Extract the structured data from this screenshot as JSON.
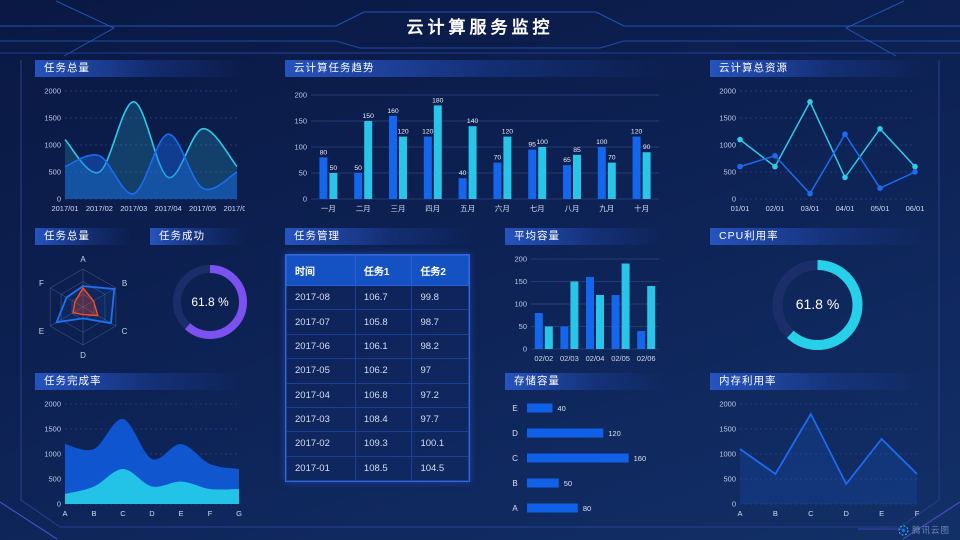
{
  "title": "云计算服务监控",
  "footer": {
    "logo_text": "腾讯云图"
  },
  "colors": {
    "accent_blue": "#1b6cf0",
    "accent_cyan": "#2ecbe6",
    "gauge_purple": "#7b52f0",
    "gauge_cyan": "#25d0e8",
    "radar_orange": "#ff4a1f",
    "panel_header_blue": "#2355c2",
    "table_header_blue": "#1452c4"
  },
  "chart_data": [
    {
      "id": "task_total_trend",
      "type": "area",
      "title": "任务总量",
      "x": [
        "2017/01",
        "2017/02",
        "2017/03",
        "2017/04",
        "2017/05",
        "2017/06"
      ],
      "series": [
        {
          "name": "cyan-series",
          "color": "#2ecbe6",
          "values": [
            1100,
            500,
            1800,
            400,
            1300,
            600
          ]
        },
        {
          "name": "blue-series",
          "color": "#1b6cf0",
          "values": [
            600,
            800,
            100,
            1200,
            200,
            500
          ]
        }
      ],
      "ylim": [
        0,
        2000
      ],
      "yticks": [
        0,
        500,
        1000,
        1500,
        2000
      ]
    },
    {
      "id": "cloud_task_trend",
      "type": "bar",
      "title": "云计算任务趋势",
      "categories": [
        "一月",
        "二月",
        "三月",
        "四月",
        "五月",
        "六月",
        "七月",
        "八月",
        "九月",
        "十月"
      ],
      "series": [
        {
          "name": "blue-series",
          "color": "#1466ec",
          "values": [
            80,
            50,
            160,
            120,
            40,
            70,
            95,
            65,
            100,
            120
          ]
        },
        {
          "name": "cyan-series",
          "color": "#28c5e8",
          "values": [
            50,
            150,
            120,
            180,
            140,
            120,
            100,
            85,
            70,
            90
          ]
        }
      ],
      "ylim": [
        0,
        200
      ],
      "yticks": [
        0,
        50,
        100,
        150,
        200
      ]
    },
    {
      "id": "cloud_total_resources",
      "type": "line",
      "title": "云计算总资源",
      "x": [
        "01/01",
        "02/01",
        "03/01",
        "04/01",
        "05/01",
        "06/01"
      ],
      "series": [
        {
          "name": "cyan-series",
          "color": "#2ecbe6",
          "values": [
            1100,
            600,
            1800,
            400,
            1300,
            600
          ]
        },
        {
          "name": "blue-series",
          "color": "#1b6cf0",
          "values": [
            600,
            800,
            100,
            1200,
            200,
            500
          ]
        }
      ],
      "ylim": [
        0,
        2000
      ],
      "yticks": [
        0,
        500,
        1000,
        1500,
        2000
      ]
    },
    {
      "id": "task_radar",
      "type": "radar",
      "title": "任务总量",
      "axes": [
        "A",
        "B",
        "C",
        "D",
        "E",
        "F"
      ],
      "max": 100,
      "series": [
        {
          "name": "blue-series",
          "color": "#1e72f0",
          "values": [
            55,
            95,
            85,
            30,
            80,
            50
          ]
        },
        {
          "name": "orange-series",
          "color": "#ff4a1f",
          "values": [
            50,
            32,
            45,
            20,
            30,
            25
          ]
        }
      ]
    },
    {
      "id": "task_success_gauge",
      "type": "donut",
      "title": "任务成功",
      "value": 61.8,
      "label": "61.8 %",
      "color": "#7b52f0"
    },
    {
      "id": "task_table",
      "type": "table",
      "title": "任务管理",
      "headers": [
        "时间",
        "任务1",
        "任务2"
      ],
      "rows": [
        [
          "2017-08",
          "106.7",
          "99.8"
        ],
        [
          "2017-07",
          "105.8",
          "98.7"
        ],
        [
          "2017-06",
          "106.1",
          "98.2"
        ],
        [
          "2017-05",
          "106.2",
          "97"
        ],
        [
          "2017-04",
          "106.8",
          "97.2"
        ],
        [
          "2017-03",
          "108.4",
          "97.7"
        ],
        [
          "2017-02",
          "109.3",
          "100.1"
        ],
        [
          "2017-01",
          "108.5",
          "104.5"
        ]
      ]
    },
    {
      "id": "avg_capacity",
      "type": "bar",
      "title": "平均容量",
      "categories": [
        "02/02",
        "02/03",
        "02/04",
        "02/05",
        "02/06"
      ],
      "series": [
        {
          "name": "blue-series",
          "color": "#1466ec",
          "values": [
            80,
            50,
            160,
            120,
            40
          ]
        },
        {
          "name": "cyan-series",
          "color": "#28c5e8",
          "values": [
            50,
            150,
            120,
            190,
            140
          ]
        }
      ],
      "ylim": [
        0,
        200
      ],
      "yticks": [
        0,
        50,
        100,
        150,
        200
      ]
    },
    {
      "id": "cpu_gauge",
      "type": "donut",
      "title": "CPU利用率",
      "value": 61.8,
      "label": "61.8 %",
      "color": "#25d0e8"
    },
    {
      "id": "completion_area",
      "type": "area",
      "title": "任务完成率",
      "x": [
        "A",
        "B",
        "C",
        "D",
        "E",
        "F",
        "G"
      ],
      "series": [
        {
          "name": "blue-series",
          "color": "#1059d6",
          "values": [
            1200,
            1100,
            1700,
            900,
            1200,
            800,
            700
          ]
        },
        {
          "name": "cyan-series",
          "color": "#22c3e6",
          "values": [
            200,
            350,
            700,
            350,
            450,
            300,
            300
          ]
        }
      ],
      "ylim": [
        0,
        2000
      ],
      "yticks": [
        0,
        500,
        1000,
        1500,
        2000
      ]
    },
    {
      "id": "storage",
      "type": "hbar",
      "title": "存储容量",
      "categories": [
        "E",
        "D",
        "C",
        "B",
        "A"
      ],
      "values": [
        40,
        120,
        160,
        50,
        80
      ],
      "xmax": 170,
      "color": "#1161e8"
    },
    {
      "id": "memory",
      "type": "line",
      "title": "内存利用率",
      "x": [
        "A",
        "B",
        "C",
        "D",
        "E",
        "F"
      ],
      "series": [
        {
          "name": "blue-series",
          "color": "#1e6af0",
          "values": [
            1100,
            600,
            1800,
            400,
            1300,
            600
          ]
        }
      ],
      "ylim": [
        0,
        2000
      ],
      "yticks": [
        0,
        500,
        1000,
        1500,
        2000
      ]
    }
  ]
}
